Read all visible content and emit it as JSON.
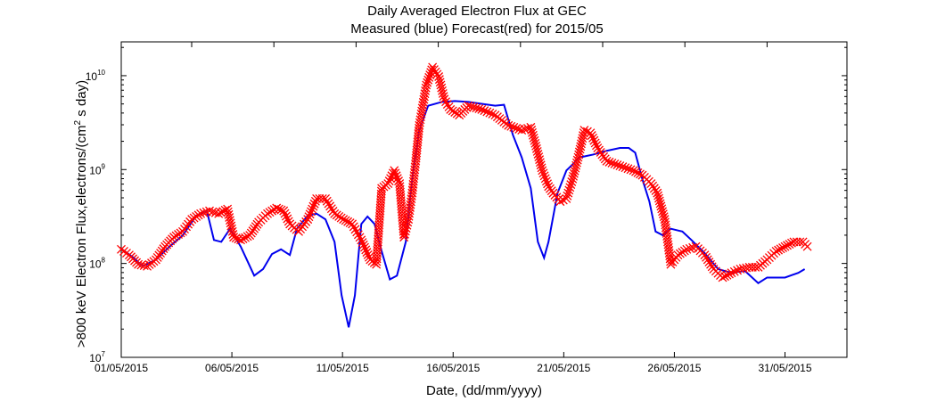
{
  "chart_data": {
    "type": "line",
    "title": [
      "Daily Averaged Electron Flux at GEC",
      "Measured (blue) Forecast(red) for 2015/05"
    ],
    "xlabel": "Date, (dd/mm/yyyy)",
    "ylabel": ">800 keV Electron Flux,electrons/(cm",
    "ylabel_sup": "2",
    "ylabel_tail": " s day)",
    "x_units": "days since 01/05/2015",
    "xlim": [
      0,
      32.8
    ],
    "ylim_log10": [
      7,
      10.36
    ],
    "yscale": "log",
    "x_ticks": [
      {
        "value": 0,
        "label": "01/05/2015"
      },
      {
        "value": 5,
        "label": "06/05/2015"
      },
      {
        "value": 10,
        "label": "11/05/2015"
      },
      {
        "value": 15,
        "label": "16/05/2015"
      },
      {
        "value": 20,
        "label": "21/05/2015"
      },
      {
        "value": 25,
        "label": "26/05/2015"
      },
      {
        "value": 30,
        "label": "31/05/2015"
      }
    ],
    "y_ticks": [
      {
        "exp": 7,
        "base": "10",
        "sup": "7"
      },
      {
        "exp": 8,
        "base": "10",
        "sup": "8"
      },
      {
        "exp": 9,
        "base": "10",
        "sup": "9"
      },
      {
        "exp": 10,
        "base": "10",
        "sup": "10"
      }
    ],
    "grid": false,
    "series": [
      {
        "name": "Measured",
        "color": "#0000ee",
        "style": "line",
        "x": [
          0.04,
          0.56,
          0.97,
          1.57,
          2.18,
          2.78,
          3.39,
          3.87,
          4.19,
          4.52,
          4.92,
          5.4,
          6.01,
          6.41,
          6.81,
          7.22,
          7.62,
          7.94,
          8.43,
          8.83,
          9.23,
          9.64,
          9.96,
          10.28,
          10.56,
          10.85,
          11.13,
          11.45,
          11.77,
          12.14,
          12.46,
          12.86,
          13.15,
          13.47,
          13.87,
          14.48,
          15.08,
          15.69,
          16.29,
          16.9,
          17.3,
          17.7,
          18.1,
          18.51,
          18.83,
          19.11,
          19.31,
          19.72,
          20.12,
          20.73,
          21.33,
          21.94,
          22.54,
          22.94,
          23.23,
          23.55,
          23.87,
          24.15,
          24.48,
          24.84,
          25.36,
          25.77,
          26.37,
          26.98,
          27.58,
          28.19,
          28.79,
          29.19,
          30.0,
          30.6,
          30.89
        ],
        "log10_flux": [
          8.15,
          8.06,
          7.97,
          8.04,
          8.18,
          8.3,
          8.51,
          8.56,
          8.25,
          8.23,
          8.37,
          8.18,
          7.87,
          7.94,
          8.1,
          8.15,
          8.09,
          8.37,
          8.51,
          8.53,
          8.47,
          8.23,
          7.66,
          7.32,
          7.66,
          8.42,
          8.5,
          8.42,
          8.13,
          7.83,
          7.87,
          8.23,
          8.9,
          9.42,
          9.68,
          9.72,
          9.73,
          9.72,
          9.7,
          9.68,
          9.69,
          9.37,
          9.13,
          8.8,
          8.23,
          8.06,
          8.23,
          8.75,
          8.99,
          9.13,
          9.16,
          9.2,
          9.23,
          9.23,
          9.18,
          8.9,
          8.66,
          8.34,
          8.3,
          8.37,
          8.34,
          8.25,
          8.11,
          7.94,
          7.9,
          7.92,
          7.79,
          7.85,
          7.85,
          7.9,
          7.94
        ]
      },
      {
        "name": "Forecast",
        "color": "#ff0000",
        "style": "x-markers",
        "x": [
          0,
          0.36,
          0.77,
          1.17,
          1.57,
          1.98,
          2.38,
          2.78,
          3.19,
          3.59,
          3.99,
          4.4,
          4.8,
          5.08,
          5.4,
          5.81,
          6.21,
          6.61,
          7.02,
          7.34,
          7.62,
          8.02,
          8.43,
          8.83,
          9.23,
          9.64,
          10.04,
          10.44,
          10.85,
          11.25,
          11.53,
          11.77,
          12.06,
          12.34,
          12.58,
          12.78,
          12.98,
          13.15,
          13.31,
          13.47,
          13.79,
          14.07,
          14.35,
          14.6,
          14.88,
          15.28,
          15.69,
          16.29,
          16.9,
          17.5,
          18.1,
          18.51,
          18.71,
          19.03,
          19.31,
          19.52,
          19.84,
          20.12,
          20.4,
          20.65,
          20.93,
          21.21,
          21.53,
          21.94,
          22.54,
          23.15,
          23.55,
          23.95,
          24.23,
          24.56,
          24.84,
          25.16,
          25.56,
          25.97,
          26.37,
          26.77,
          27.18,
          27.58,
          27.98,
          28.39,
          28.79,
          29.19,
          29.6,
          30.0,
          30.4,
          30.81,
          31.01
        ],
        "log10_flux": [
          8.15,
          8.09,
          7.99,
          7.97,
          8.04,
          8.18,
          8.28,
          8.34,
          8.47,
          8.53,
          8.56,
          8.53,
          8.58,
          8.28,
          8.25,
          8.3,
          8.44,
          8.53,
          8.59,
          8.56,
          8.42,
          8.34,
          8.47,
          8.69,
          8.69,
          8.53,
          8.47,
          8.42,
          8.25,
          8.04,
          7.99,
          8.8,
          8.85,
          8.99,
          8.85,
          8.28,
          8.47,
          8.75,
          9.09,
          9.47,
          9.9,
          10.09,
          9.99,
          9.75,
          9.64,
          9.58,
          9.68,
          9.64,
          9.58,
          9.47,
          9.42,
          9.45,
          9.28,
          8.99,
          8.82,
          8.75,
          8.66,
          8.69,
          8.9,
          9.13,
          9.42,
          9.39,
          9.23,
          9.09,
          9.04,
          8.99,
          8.94,
          8.85,
          8.75,
          8.47,
          7.99,
          8.09,
          8.15,
          8.18,
          8.09,
          7.94,
          7.85,
          7.9,
          7.94,
          7.96,
          7.96,
          8.04,
          8.13,
          8.18,
          8.23,
          8.23,
          8.18
        ]
      }
    ]
  }
}
